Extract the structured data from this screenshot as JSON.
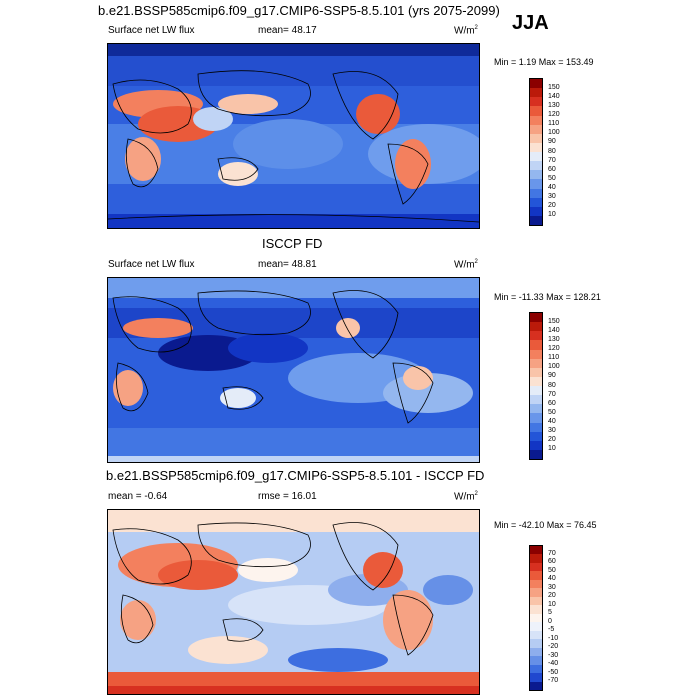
{
  "header": {
    "title": "b.e21.BSSP585cmip6.f09_g17.CMIP6-SSP5-8.5.101 (yrs 2075-2099)",
    "season": "JJA"
  },
  "panels": [
    {
      "id": "model",
      "variable": "Surface net LW flux",
      "mean_text": "mean=  48.17",
      "units": "W/m",
      "units_sup": "2",
      "minmax": "Min =   1.19 Max = 153.49"
    },
    {
      "id": "obs",
      "heading": "ISCCP FD",
      "variable": "Surface net LW flux",
      "mean_text": "mean=  48.81",
      "units": "W/m",
      "units_sup": "2",
      "minmax": "Min = -11.33 Max = 128.21"
    },
    {
      "id": "diff",
      "heading": "b.e21.BSSP585cmip6.f09_g17.CMIP6-SSP5-8.5.101 - ISCCP FD",
      "mean_text": "mean =  -0.64",
      "rmse_text": "rmse =  16.01",
      "units": "W/m",
      "units_sup": "2",
      "minmax": "Min = -42.10 Max =  76.45"
    }
  ],
  "colorbar_abs": {
    "labels": [
      "150",
      "140",
      "130",
      "120",
      "110",
      "100",
      "90",
      "80",
      "70",
      "60",
      "50",
      "40",
      "30",
      "20",
      "10"
    ],
    "colors": [
      "#8b0000",
      "#bb1a0a",
      "#d73020",
      "#ea5a3a",
      "#f3805e",
      "#f6a283",
      "#f9c4a9",
      "#fbe2d2",
      "#e4ecf8",
      "#c0d4f5",
      "#94b7ef",
      "#6996ea",
      "#4276e3",
      "#2355d8",
      "#1235c4",
      "#0a1a8f"
    ]
  },
  "colorbar_diff": {
    "labels": [
      "70",
      "60",
      "50",
      "40",
      "30",
      "20",
      "10",
      "5",
      "0",
      "-5",
      "-10",
      "-20",
      "-30",
      "-40",
      "-50",
      "-70"
    ],
    "colors": [
      "#8b0000",
      "#bb1a0a",
      "#d73020",
      "#ea5a3a",
      "#f3805e",
      "#f6a283",
      "#f9c4a9",
      "#fbe2d2",
      "#fdf4ee",
      "#eef2fb",
      "#d7e3f8",
      "#b5ccf3",
      "#8eaeed",
      "#6690e7",
      "#3d6ee0",
      "#2048cf",
      "#0a1a8f"
    ]
  }
}
